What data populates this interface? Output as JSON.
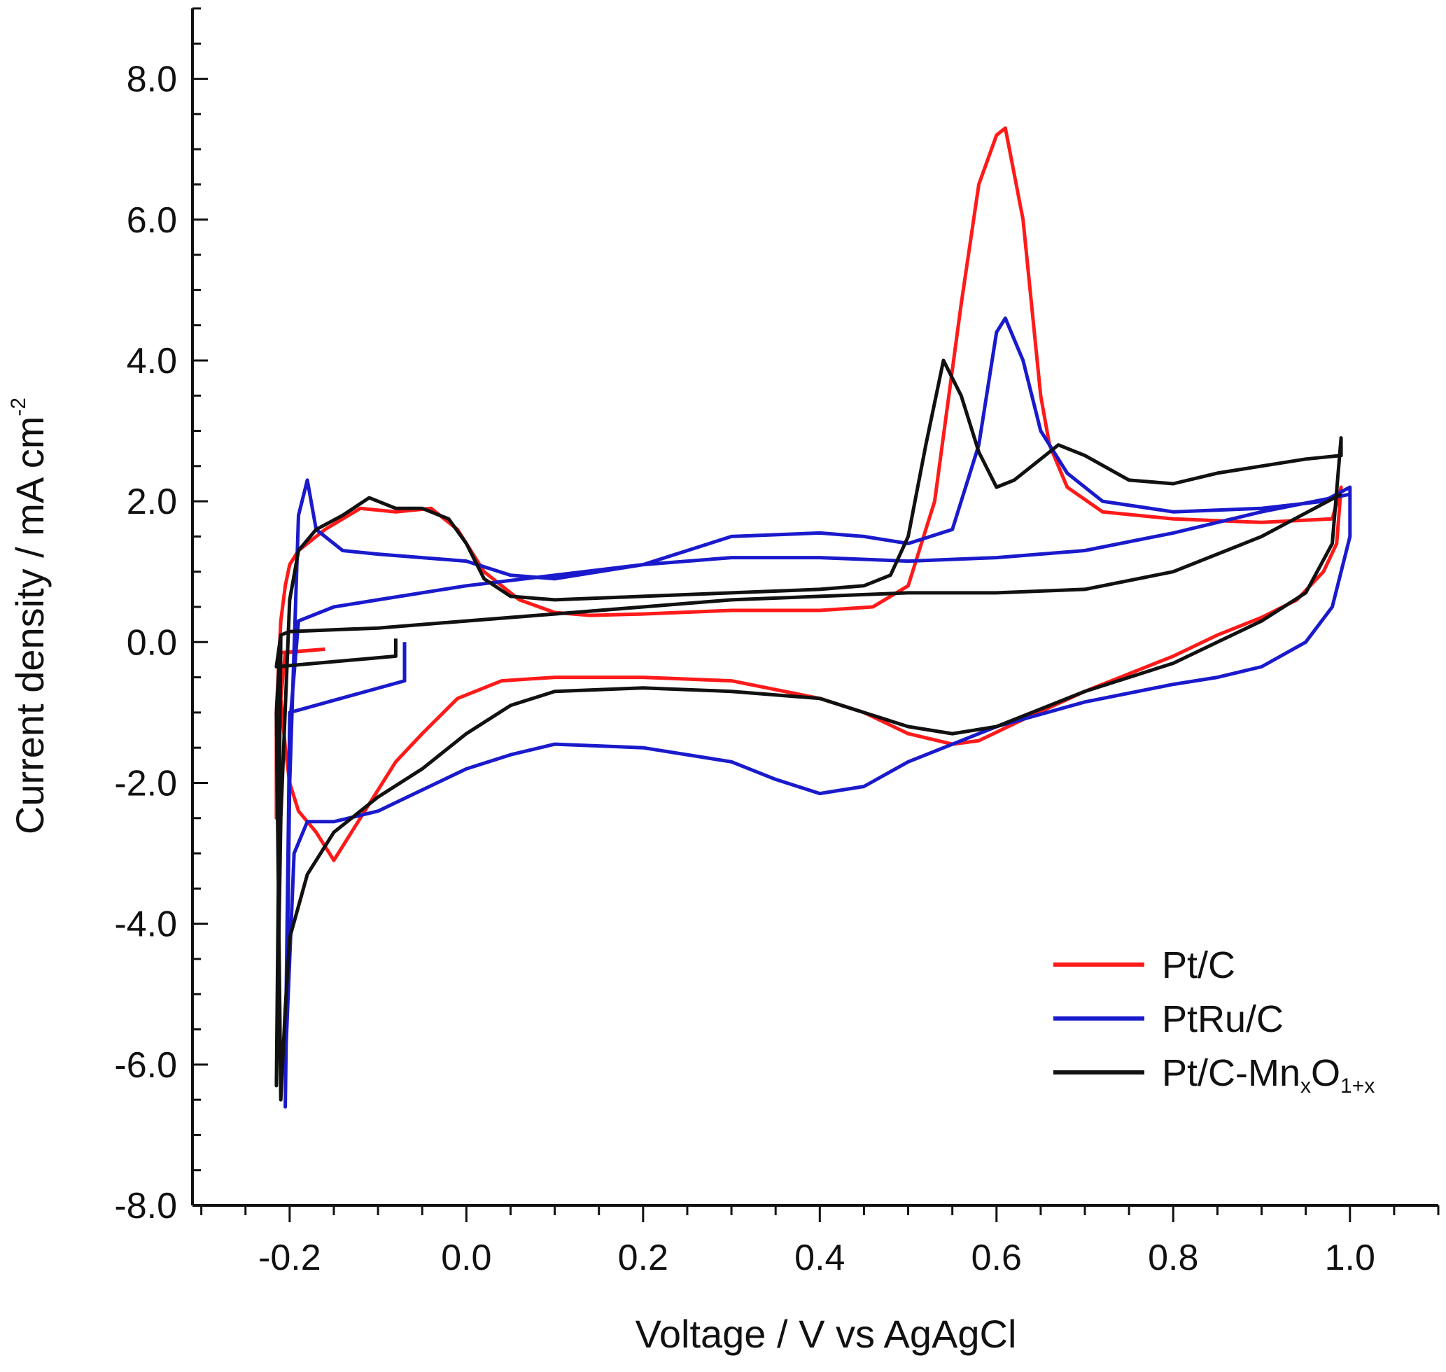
{
  "chart_data": {
    "type": "line",
    "title": "",
    "xlabel": "Voltage / V vs AgAgCl",
    "ylabel": {
      "main": "Current density / mA cm",
      "superscript": "-2"
    },
    "xlim": [
      -0.31,
      1.1
    ],
    "ylim": [
      -8.0,
      9.0
    ],
    "xticks": [
      -0.2,
      0.0,
      0.2,
      0.4,
      0.6,
      0.8,
      1.0
    ],
    "xtick_labels": [
      "-0.2",
      "0.0",
      "0.2",
      "0.4",
      "0.6",
      "0.8",
      "1.0"
    ],
    "yticks": [
      -8.0,
      -6.0,
      -4.0,
      -2.0,
      0.0,
      2.0,
      4.0,
      6.0,
      8.0
    ],
    "ytick_labels": [
      "-8.0",
      "-6.0",
      "-4.0",
      "-2.0",
      "0.0",
      "2.0",
      "4.0",
      "6.0",
      "8.0"
    ],
    "grid": false,
    "legend_position": "bottom-right",
    "series": [
      {
        "name": "Pt/C",
        "legend": {
          "base": "Pt/C"
        },
        "color": "#ff1a1a",
        "x": [
          -0.16,
          -0.21,
          -0.21,
          -0.215,
          -0.215,
          -0.21,
          -0.205,
          -0.2,
          -0.19,
          -0.16,
          -0.12,
          -0.08,
          -0.04,
          -0.01,
          0.02,
          0.06,
          0.1,
          0.14,
          0.2,
          0.3,
          0.4,
          0.46,
          0.5,
          0.53,
          0.56,
          0.58,
          0.6,
          0.61,
          0.63,
          0.65,
          0.66,
          0.68,
          0.72,
          0.8,
          0.9,
          0.98,
          0.99,
          0.985,
          0.97,
          0.94,
          0.9,
          0.85,
          0.8,
          0.7,
          0.63,
          0.58,
          0.55,
          0.5,
          0.45,
          0.4,
          0.3,
          0.2,
          0.1,
          0.04,
          -0.01,
          -0.05,
          -0.08,
          -0.11,
          -0.14,
          -0.15,
          -0.17,
          -0.19,
          -0.2,
          -0.205,
          -0.21,
          -0.205,
          -0.16
        ],
        "y": [
          -0.1,
          -0.15,
          -0.15,
          -2.5,
          -1.0,
          0.3,
          0.8,
          1.1,
          1.3,
          1.6,
          1.9,
          1.85,
          1.9,
          1.6,
          1.0,
          0.6,
          0.42,
          0.38,
          0.4,
          0.45,
          0.45,
          0.5,
          0.8,
          2.0,
          4.8,
          6.5,
          7.2,
          7.3,
          6.0,
          3.5,
          2.8,
          2.2,
          1.85,
          1.75,
          1.7,
          1.75,
          2.2,
          1.4,
          1.0,
          0.6,
          0.35,
          0.1,
          -0.2,
          -0.7,
          -1.1,
          -1.4,
          -1.45,
          -1.3,
          -1.0,
          -0.8,
          -0.55,
          -0.5,
          -0.5,
          -0.55,
          -0.8,
          -1.3,
          -1.7,
          -2.3,
          -2.9,
          -3.1,
          -2.7,
          -2.4,
          -2.0,
          -1.5,
          -0.8,
          -0.15,
          -0.1
        ]
      },
      {
        "name": "PtRu/C",
        "legend": {
          "base": "PtRu/C"
        },
        "color": "#1a1acc",
        "x": [
          -0.07,
          -0.07,
          -0.2,
          -0.205,
          -0.2,
          -0.19,
          -0.18,
          -0.17,
          -0.14,
          -0.1,
          -0.05,
          0.0,
          0.05,
          0.1,
          0.2,
          0.3,
          0.4,
          0.45,
          0.5,
          0.55,
          0.58,
          0.6,
          0.61,
          0.63,
          0.65,
          0.68,
          0.72,
          0.8,
          0.9,
          0.97,
          1.0,
          1.0,
          0.98,
          0.95,
          0.9,
          0.85,
          0.8,
          0.7,
          0.6,
          0.5,
          0.45,
          0.4,
          0.35,
          0.3,
          0.2,
          0.1,
          0.05,
          0.0,
          -0.05,
          -0.1,
          -0.15,
          -0.18,
          -0.195,
          -0.2,
          -0.205,
          -0.2,
          -0.19,
          -0.15,
          -0.1,
          0.0,
          0.1,
          0.2,
          0.3,
          0.4,
          0.5,
          0.6,
          0.7,
          0.8,
          0.9,
          1.0
        ],
        "y": [
          0.0,
          -0.55,
          -1.0,
          -6.6,
          -2.0,
          1.8,
          2.3,
          1.6,
          1.3,
          1.25,
          1.2,
          1.15,
          0.95,
          0.9,
          1.1,
          1.5,
          1.55,
          1.5,
          1.4,
          1.6,
          2.8,
          4.4,
          4.6,
          4.0,
          3.0,
          2.4,
          2.0,
          1.85,
          1.9,
          2.0,
          2.2,
          1.5,
          0.5,
          0.0,
          -0.35,
          -0.5,
          -0.6,
          -0.85,
          -1.2,
          -1.7,
          -2.05,
          -2.15,
          -1.95,
          -1.7,
          -1.5,
          -1.45,
          -1.6,
          -1.8,
          -2.1,
          -2.4,
          -2.55,
          -2.55,
          -3.0,
          -4.5,
          -6.0,
          -1.2,
          0.3,
          0.5,
          0.6,
          0.8,
          0.95,
          1.1,
          1.2,
          1.2,
          1.15,
          1.2,
          1.3,
          1.55,
          1.85,
          2.1
        ]
      },
      {
        "name": "Pt/C-MnxO1+x",
        "legend": {
          "base": "Pt/C-Mn",
          "sub1": "x",
          "mid": "O",
          "sub2": "1+x"
        },
        "color": "#111111",
        "x": [
          -0.08,
          -0.08,
          -0.215,
          -0.21,
          -0.215,
          -0.21,
          -0.2,
          -0.19,
          -0.17,
          -0.14,
          -0.11,
          -0.08,
          -0.05,
          -0.02,
          0.0,
          0.02,
          0.05,
          0.1,
          0.2,
          0.3,
          0.4,
          0.45,
          0.48,
          0.5,
          0.52,
          0.54,
          0.56,
          0.58,
          0.6,
          0.62,
          0.65,
          0.67,
          0.7,
          0.75,
          0.8,
          0.85,
          0.9,
          0.95,
          0.99,
          0.99,
          0.98,
          0.95,
          0.9,
          0.85,
          0.8,
          0.7,
          0.6,
          0.55,
          0.5,
          0.45,
          0.4,
          0.3,
          0.2,
          0.1,
          0.05,
          0.0,
          -0.05,
          -0.1,
          -0.15,
          -0.18,
          -0.2,
          -0.205,
          -0.21,
          -0.215,
          -0.21,
          -0.2,
          -0.1,
          0.0,
          0.1,
          0.2,
          0.3,
          0.4,
          0.5,
          0.6,
          0.7,
          0.8,
          0.9,
          0.99
        ],
        "y": [
          0.05,
          -0.2,
          -0.35,
          0.1,
          -6.3,
          -2.5,
          0.6,
          1.3,
          1.6,
          1.8,
          2.05,
          1.9,
          1.9,
          1.75,
          1.4,
          0.9,
          0.65,
          0.6,
          0.65,
          0.7,
          0.75,
          0.8,
          0.95,
          1.5,
          2.8,
          4.0,
          3.5,
          2.7,
          2.2,
          2.3,
          2.6,
          2.8,
          2.65,
          2.3,
          2.25,
          2.4,
          2.5,
          2.6,
          2.65,
          2.9,
          1.4,
          0.7,
          0.3,
          0.0,
          -0.3,
          -0.7,
          -1.2,
          -1.3,
          -1.2,
          -1.0,
          -0.8,
          -0.7,
          -0.65,
          -0.7,
          -0.9,
          -1.3,
          -1.8,
          -2.2,
          -2.7,
          -3.3,
          -4.2,
          -5.2,
          -6.5,
          -1.0,
          0.1,
          0.15,
          0.2,
          0.3,
          0.4,
          0.5,
          0.6,
          0.65,
          0.7,
          0.7,
          0.75,
          1.0,
          1.5,
          2.1
        ]
      }
    ]
  }
}
